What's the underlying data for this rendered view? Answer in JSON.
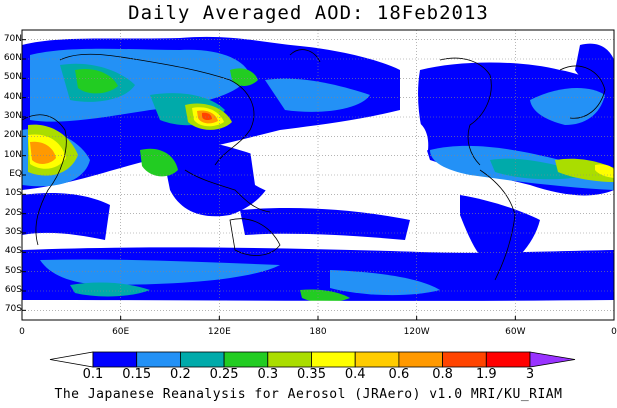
{
  "title": "Daily Averaged AOD: 18Feb2013",
  "lat_labels": [
    "70N",
    "60N",
    "50N",
    "40N",
    "30N",
    "20N",
    "10N",
    "EQ",
    "10S",
    "20S",
    "30S",
    "40S",
    "50S",
    "60S",
    "70S"
  ],
  "lon_labels": [
    "0",
    "60E",
    "120E",
    "180",
    "120W",
    "60W",
    "0"
  ],
  "colorbar": {
    "labels": [
      "0.1",
      "0.15",
      "0.2",
      "0.25",
      "0.3",
      "0.35",
      "0.4",
      "0.6",
      "0.8",
      "1.9",
      "3"
    ],
    "colors": [
      "#ffffff",
      "#0000ff",
      "#2391f6",
      "#00aaaa",
      "#22cc22",
      "#aadd00",
      "#ffff00",
      "#ffcc00",
      "#ff9900",
      "#ff4400",
      "#ff0000",
      "#9933ff"
    ]
  },
  "credit": "The Japanese Reanalysis for Aerosol (JRAero) v1.0 MRI/KU_RIAM"
}
